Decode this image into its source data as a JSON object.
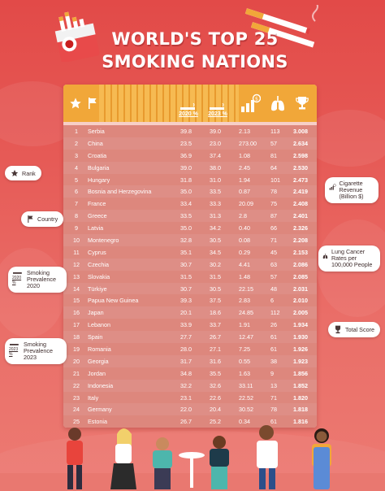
{
  "title_line1": "WORLD'S TOP 25",
  "title_line2": "SMOKING NATIONS",
  "legend": {
    "rank": "Rank",
    "country": "Country",
    "smoking_2020": "Smoking Prevalence 2020",
    "smoking_2023": "Smoking Prevalence 2023",
    "revenue": "Cigarette Revenue (Billion $)",
    "lung_cancer": "Lung Cancer Rates per 100,000 People",
    "total_score": "Total Score",
    "badge_2020": "2020 %",
    "badge_2023": "2023 %"
  },
  "header": {
    "col_2020": "2020 %",
    "col_2023": "2023 %"
  },
  "colors": {
    "background": "#e24a48",
    "header": "#f1a739",
    "row_dark": "#d67268",
    "row_light": "#ce665e",
    "card": "#f7cfc7"
  },
  "chart_data": {
    "type": "table",
    "title": "WORLD'S TOP 25 SMOKING NATIONS",
    "columns": [
      "Rank",
      "Country",
      "2020 %",
      "2023 %",
      "Cigarette Revenue (Billion $)",
      "Lung Cancer Rates per 100,000 People",
      "Total Score"
    ],
    "rows": [
      {
        "rank": "1",
        "country": "Serbia",
        "p2020": "39.8",
        "p2023": "39.0",
        "revenue": "2.13",
        "lung_cancer": "113",
        "total": "3.008"
      },
      {
        "rank": "2",
        "country": "China",
        "p2020": "23.5",
        "p2023": "23.0",
        "revenue": "273.00",
        "lung_cancer": "57",
        "total": "2.634"
      },
      {
        "rank": "3",
        "country": "Croatia",
        "p2020": "36.9",
        "p2023": "37.4",
        "revenue": "1.08",
        "lung_cancer": "81",
        "total": "2.598"
      },
      {
        "rank": "4",
        "country": "Bulgaria",
        "p2020": "39.0",
        "p2023": "38.0",
        "revenue": "2.45",
        "lung_cancer": "64",
        "total": "2.530"
      },
      {
        "rank": "5",
        "country": "Hungary",
        "p2020": "31.8",
        "p2023": "31.0",
        "revenue": "1.94",
        "lung_cancer": "101",
        "total": "2.473"
      },
      {
        "rank": "6",
        "country": "Bosnia and Herzegovina",
        "p2020": "35.0",
        "p2023": "33.5",
        "revenue": "0.87",
        "lung_cancer": "78",
        "total": "2.419"
      },
      {
        "rank": "7",
        "country": "France",
        "p2020": "33.4",
        "p2023": "33.3",
        "revenue": "20.09",
        "lung_cancer": "75",
        "total": "2.408"
      },
      {
        "rank": "8",
        "country": "Greece",
        "p2020": "33.5",
        "p2023": "31.3",
        "revenue": "2.8",
        "lung_cancer": "87",
        "total": "2.401"
      },
      {
        "rank": "9",
        "country": "Latvia",
        "p2020": "35.0",
        "p2023": "34.2",
        "revenue": "0.40",
        "lung_cancer": "66",
        "total": "2.326"
      },
      {
        "rank": "10",
        "country": "Montenegro",
        "p2020": "32.8",
        "p2023": "30.5",
        "revenue": "0.08",
        "lung_cancer": "71",
        "total": "2.208"
      },
      {
        "rank": "11",
        "country": "Cyprus",
        "p2020": "35.1",
        "p2023": "34.5",
        "revenue": "0.29",
        "lung_cancer": "45",
        "total": "2.153"
      },
      {
        "rank": "12",
        "country": "Czechia",
        "p2020": "30.7",
        "p2023": "30.2",
        "revenue": "4.41",
        "lung_cancer": "63",
        "total": "2.086"
      },
      {
        "rank": "13",
        "country": "Slovakia",
        "p2020": "31.5",
        "p2023": "31.5",
        "revenue": "1.48",
        "lung_cancer": "57",
        "total": "2.085"
      },
      {
        "rank": "14",
        "country": "Türkiye",
        "p2020": "30.7",
        "p2023": "30.5",
        "revenue": "22.15",
        "lung_cancer": "48",
        "total": "2.031"
      },
      {
        "rank": "15",
        "country": "Papua New Guinea",
        "p2020": "39.3",
        "p2023": "37.5",
        "revenue": "2.83",
        "lung_cancer": "6",
        "total": "2.010"
      },
      {
        "rank": "16",
        "country": "Japan",
        "p2020": "20.1",
        "p2023": "18.6",
        "revenue": "24.85",
        "lung_cancer": "112",
        "total": "2.005"
      },
      {
        "rank": "17",
        "country": "Lebanon",
        "p2020": "33.9",
        "p2023": "33.7",
        "revenue": "1.91",
        "lung_cancer": "26",
        "total": "1.934"
      },
      {
        "rank": "18",
        "country": "Spain",
        "p2020": "27.7",
        "p2023": "26.7",
        "revenue": "12.47",
        "lung_cancer": "61",
        "total": "1.930"
      },
      {
        "rank": "19",
        "country": "Romania",
        "p2020": "28.0",
        "p2023": "27.1",
        "revenue": "7.25",
        "lung_cancer": "61",
        "total": "1.926"
      },
      {
        "rank": "20",
        "country": "Georgia",
        "p2020": "31.7",
        "p2023": "31.6",
        "revenue": "0.55",
        "lung_cancer": "38",
        "total": "1.923"
      },
      {
        "rank": "21",
        "country": "Jordan",
        "p2020": "34.8",
        "p2023": "35.5",
        "revenue": "1.63",
        "lung_cancer": "9",
        "total": "1.856"
      },
      {
        "rank": "22",
        "country": "Indonesia",
        "p2020": "32.2",
        "p2023": "32.6",
        "revenue": "33.11",
        "lung_cancer": "13",
        "total": "1.852"
      },
      {
        "rank": "23",
        "country": "Italy",
        "p2020": "23.1",
        "p2023": "22.6",
        "revenue": "22.52",
        "lung_cancer": "71",
        "total": "1.820"
      },
      {
        "rank": "24",
        "country": "Germany",
        "p2020": "22.0",
        "p2023": "20.4",
        "revenue": "30.52",
        "lung_cancer": "78",
        "total": "1.818"
      },
      {
        "rank": "25",
        "country": "Estonia",
        "p2020": "26.7",
        "p2023": "25.2",
        "revenue": "0.34",
        "lung_cancer": "61",
        "total": "1.816"
      }
    ]
  }
}
